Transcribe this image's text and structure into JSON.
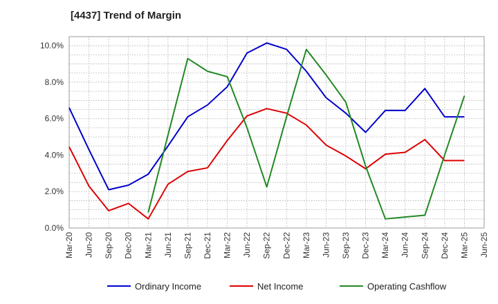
{
  "chart_data": {
    "type": "line",
    "title": "[4437]  Trend of Margin",
    "xlabel": "",
    "ylabel": "",
    "categories": [
      "Mar-20",
      "Jun-20",
      "Sep-20",
      "Dec-20",
      "Mar-21",
      "Jun-21",
      "Sep-21",
      "Dec-21",
      "Mar-22",
      "Jun-22",
      "Sep-22",
      "Dec-22",
      "Mar-23",
      "Jun-23",
      "Sep-23",
      "Dec-23",
      "Mar-24",
      "Jun-24",
      "Sep-24",
      "Dec-24",
      "Mar-25",
      "Jun-25"
    ],
    "ylim": [
      0,
      10.5
    ],
    "yticks": [
      0,
      2,
      4,
      6,
      8,
      10
    ],
    "ytick_labels": [
      "0.0%",
      "2.0%",
      "4.0%",
      "6.0%",
      "8.0%",
      "10.0%"
    ],
    "grid": true,
    "legend_position": "bottom",
    "series": [
      {
        "name": "Ordinary Income",
        "color": "#0000cc",
        "values": [
          6.6,
          4.3,
          2.1,
          2.35,
          2.95,
          4.5,
          6.1,
          6.75,
          7.75,
          9.6,
          10.15,
          9.8,
          8.6,
          7.15,
          6.3,
          5.25,
          6.45,
          6.45,
          7.65,
          6.1,
          6.1,
          null
        ]
      },
      {
        "name": "Net Income",
        "color": "#dd0000",
        "values": [
          4.45,
          2.3,
          0.95,
          1.35,
          0.5,
          2.4,
          3.1,
          3.3,
          4.8,
          6.15,
          6.55,
          6.3,
          5.65,
          4.55,
          3.95,
          3.25,
          4.05,
          4.15,
          4.85,
          3.7,
          3.7,
          null
        ]
      },
      {
        "name": "Operating Cashflow",
        "color": "#228822",
        "values": [
          null,
          null,
          null,
          null,
          0.85,
          5.1,
          9.3,
          8.6,
          8.3,
          5.5,
          2.25,
          6.1,
          9.8,
          8.4,
          6.9,
          3.4,
          0.5,
          0.6,
          0.7,
          4.0,
          7.25,
          null
        ]
      }
    ]
  }
}
